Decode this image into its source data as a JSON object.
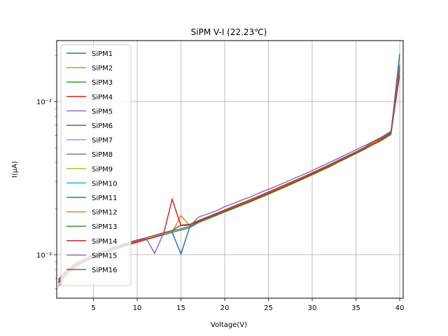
{
  "chart_data": {
    "type": "line",
    "title": "SiPM V-I (22.23℃)",
    "xlabel": "Voltage(V)",
    "ylabel": "I(μA)",
    "xlim": [
      0.8,
      40.4
    ],
    "ylim": [
      0.00052,
      0.025
    ],
    "yscale": "log",
    "xticks": [
      5,
      10,
      15,
      20,
      25,
      30,
      35,
      40
    ],
    "yticks": [
      0.001,
      0.01
    ],
    "ytick_labels": [
      "10⁻³",
      "10⁻²"
    ],
    "grid": true,
    "legend": {
      "loc": "upper-left"
    },
    "colors": [
      "#1f77b4",
      "#ff7f0e",
      "#2ca02c",
      "#d62728",
      "#9467bd",
      "#8c564b",
      "#e377c2",
      "#7f7f7f",
      "#bcbd22",
      "#17becf",
      "#1f77b4",
      "#ff7f0e",
      "#2ca02c",
      "#d62728",
      "#9467bd",
      "#8c564b"
    ],
    "x": [
      1,
      2,
      3,
      4,
      5,
      6,
      7,
      8,
      9,
      10,
      11,
      12,
      13,
      14,
      15,
      16,
      17,
      18,
      19,
      20,
      21,
      22,
      23,
      24,
      25,
      26,
      27,
      28,
      29,
      30,
      31,
      32,
      33,
      34,
      35,
      36,
      37,
      38,
      39,
      40
    ],
    "series": [
      {
        "name": "SiPM1",
        "values": [
          0.00068,
          0.00078,
          0.00085,
          0.00091,
          0.00097,
          0.00102,
          0.00107,
          0.00112,
          0.00117,
          0.00121,
          0.00126,
          0.0013,
          0.00135,
          0.0014,
          0.00101,
          0.00152,
          0.00164,
          0.00173,
          0.00182,
          0.00192,
          0.00202,
          0.00213,
          0.00224,
          0.00237,
          0.0025,
          0.00266,
          0.0028,
          0.00297,
          0.00315,
          0.00334,
          0.00356,
          0.00378,
          0.00405,
          0.0043,
          0.0046,
          0.0049,
          0.0053,
          0.0057,
          0.0062,
          0.0205
        ]
      },
      {
        "name": "SiPM2",
        "values": [
          0.00062,
          0.00075,
          0.00083,
          0.0009,
          0.00096,
          0.00101,
          0.00106,
          0.00111,
          0.00116,
          0.0012,
          0.00125,
          0.0013,
          0.00135,
          0.0014,
          0.0018,
          0.00155,
          0.00166,
          0.00175,
          0.00184,
          0.00194,
          0.00204,
          0.00215,
          0.00227,
          0.0024,
          0.00254,
          0.00269,
          0.00284,
          0.00301,
          0.00319,
          0.00339,
          0.00361,
          0.00384,
          0.0041,
          0.00437,
          0.00466,
          0.00497,
          0.0054,
          0.0058,
          0.0063,
          0.0175
        ]
      },
      {
        "name": "SiPM3",
        "values": [
          0.00066,
          0.00077,
          0.00084,
          0.0009,
          0.00096,
          0.00101,
          0.00106,
          0.00111,
          0.00116,
          0.00121,
          0.00126,
          0.0013,
          0.00135,
          0.0014,
          0.00145,
          0.0015,
          0.00162,
          0.00171,
          0.0018,
          0.0019,
          0.002,
          0.00211,
          0.00222,
          0.00235,
          0.00248,
          0.00263,
          0.00278,
          0.00295,
          0.00313,
          0.00332,
          0.00353,
          0.00375,
          0.00402,
          0.00428,
          0.00457,
          0.00488,
          0.00525,
          0.0056,
          0.0061,
          0.016
        ]
      },
      {
        "name": "SiPM4",
        "values": [
          0.00065,
          0.00077,
          0.00085,
          0.00091,
          0.00097,
          0.00102,
          0.00107,
          0.00112,
          0.00117,
          0.00122,
          0.00126,
          0.00131,
          0.00136,
          0.0023,
          0.00155,
          0.00156,
          0.00165,
          0.00174,
          0.00183,
          0.00193,
          0.00203,
          0.00214,
          0.00225,
          0.00238,
          0.00252,
          0.00266,
          0.00282,
          0.00299,
          0.00317,
          0.00337,
          0.00358,
          0.00381,
          0.00407,
          0.00434,
          0.00463,
          0.00494,
          0.0053,
          0.0057,
          0.0062,
          0.015
        ]
      },
      {
        "name": "SiPM5",
        "values": [
          0.00067,
          0.00079,
          0.00087,
          0.00093,
          0.00099,
          0.00104,
          0.00109,
          0.00114,
          0.00119,
          0.00124,
          0.00128,
          0.00102,
          0.00138,
          0.00143,
          0.00148,
          0.00153,
          0.00176,
          0.00184,
          0.00193,
          0.00206,
          0.00216,
          0.00228,
          0.00239,
          0.00254,
          0.00267,
          0.00282,
          0.00298,
          0.00316,
          0.00334,
          0.00355,
          0.00377,
          0.004,
          0.00426,
          0.00454,
          0.00484,
          0.00515,
          0.0055,
          0.0059,
          0.0064,
          0.0165
        ]
      },
      {
        "name": "SiPM6",
        "values": [
          0.00069,
          0.0008,
          0.00088,
          0.00094,
          0.001,
          0.00105,
          0.0011,
          0.00115,
          0.0012,
          0.00125,
          0.00129,
          0.00134,
          0.00139,
          0.00144,
          0.00156,
          0.00158,
          0.00167,
          0.00176,
          0.00186,
          0.00196,
          0.00207,
          0.00218,
          0.0023,
          0.00243,
          0.00257,
          0.00272,
          0.00288,
          0.00305,
          0.00323,
          0.00343,
          0.00365,
          0.00388,
          0.00414,
          0.00441,
          0.0047,
          0.00502,
          0.0055,
          0.0058,
          0.0063,
          0.017
        ]
      }
    ],
    "extra_legend_entries": [
      "SiPM7",
      "SiPM8",
      "SiPM9",
      "SiPM10",
      "SiPM11",
      "SiPM12",
      "SiPM13",
      "SiPM14",
      "SiPM15",
      "SiPM16"
    ]
  }
}
